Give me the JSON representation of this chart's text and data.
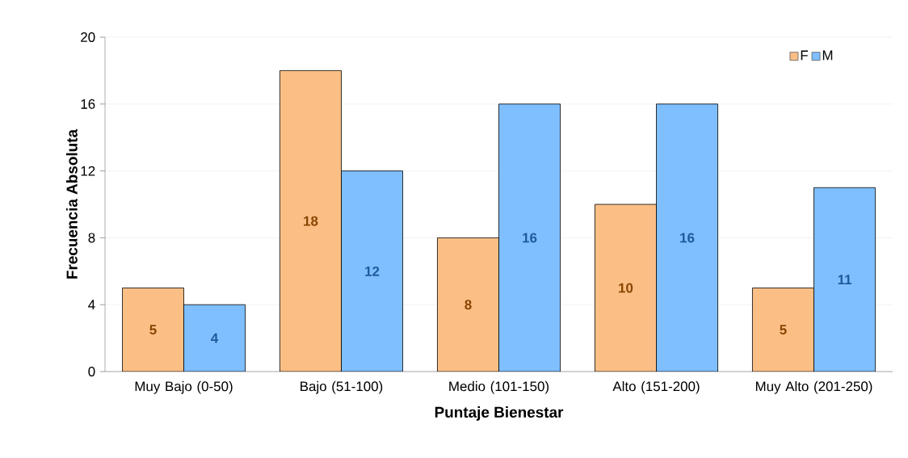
{
  "chart_data": {
    "type": "bar",
    "xlabel": "Puntaje Bienestar",
    "ylabel": "Frecuencia  Absoluta",
    "categories": [
      "Muy Bajo (0-50)",
      "Bajo (51-100)",
      "Medio (101-150)",
      "Alto (151-200)",
      "Muy Alto (201-250)"
    ],
    "series": [
      {
        "name": "F",
        "color": "#fbbf86",
        "values": [
          5,
          18,
          8,
          10,
          5
        ]
      },
      {
        "name": "M",
        "color": "#7fbfff",
        "values": [
          4,
          12,
          16,
          16,
          11
        ]
      }
    ],
    "ylim": [
      0,
      20
    ],
    "yticks": [
      0,
      4,
      8,
      12,
      16,
      20
    ],
    "grid": "y",
    "legend": "top right",
    "data_labels": true
  }
}
